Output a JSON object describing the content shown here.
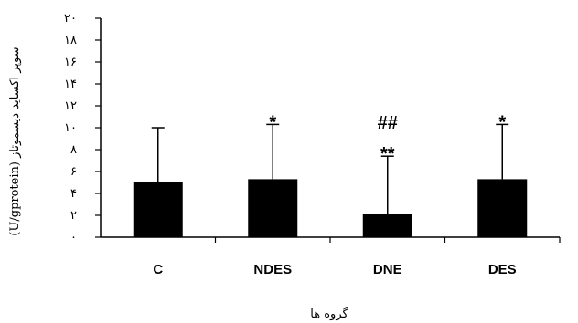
{
  "chart_data": {
    "type": "bar",
    "categories": [
      "C",
      "NDES",
      "DNE",
      "DES"
    ],
    "values": [
      5.0,
      5.3,
      2.1,
      5.3
    ],
    "errors": [
      5.0,
      5.0,
      5.3,
      5.0
    ],
    "annotations": [
      {
        "category": "NDES",
        "text": "*"
      },
      {
        "category": "DNE",
        "text": "**"
      },
      {
        "category": "DNE",
        "text": "##"
      },
      {
        "category": "DES",
        "text": "*"
      }
    ],
    "xlabel": "گروه ها",
    "ylabel": "(U/gprotein) سوپر اکساید دیسموتاز",
    "ylim": [
      0,
      20
    ],
    "yticks": [
      0,
      2,
      4,
      6,
      8,
      10,
      12,
      14,
      16,
      18,
      20
    ],
    "ytick_labels": [
      "۰",
      "۲",
      "۴",
      "۶",
      "۸",
      "۱۰",
      "۱۲",
      "۱۴",
      "۱۶",
      "۱۸",
      "۲۰"
    ],
    "bar_color": "#000000",
    "grid": false,
    "legend": "none"
  }
}
